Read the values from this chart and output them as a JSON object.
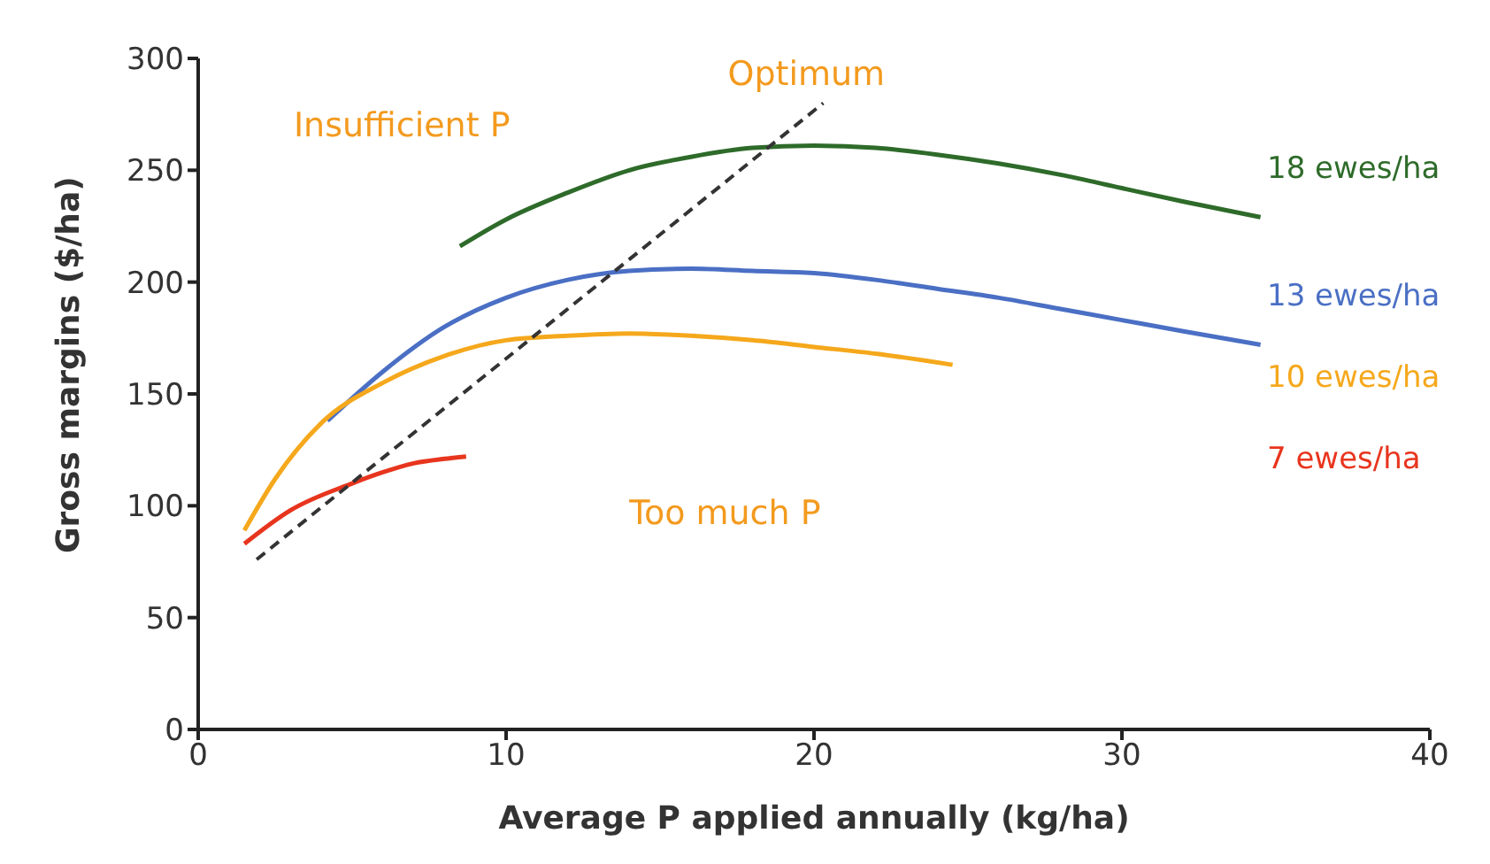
{
  "chart_data": {
    "type": "line",
    "xlabel": "Average P applied annually (kg/ha)",
    "ylabel": "Gross margins ($/ha)",
    "xlim": [
      0,
      40
    ],
    "xticks": [
      0,
      10,
      20,
      30,
      40
    ],
    "ylim": [
      0,
      300
    ],
    "yticks": [
      0,
      50,
      100,
      150,
      200,
      250,
      300
    ],
    "grid": false,
    "legend": false,
    "marker": "none",
    "annotations": [
      "Insufficient P",
      "Optimum",
      "Too much P"
    ],
    "series": [
      {
        "name": "18 ewes/ha",
        "color": "#2e6b2a",
        "x": [
          8.5,
          10,
          12,
          14,
          16,
          18,
          20,
          22,
          24,
          26,
          28,
          30,
          32,
          34.5
        ],
        "values": [
          216,
          228,
          240,
          250,
          256,
          260,
          261,
          260,
          257,
          253,
          248,
          242,
          236,
          229
        ]
      },
      {
        "name": "13 ewes/ha",
        "color": "#4a6fc4",
        "x": [
          4.2,
          6,
          8,
          10,
          12,
          14,
          16,
          18,
          20,
          22,
          24,
          26,
          28,
          30,
          32,
          34.5
        ],
        "values": [
          138,
          160,
          180,
          193,
          201,
          205,
          206,
          205,
          204,
          201,
          197,
          193,
          188,
          183,
          178,
          172
        ]
      },
      {
        "name": "10 ewes/ha",
        "color": "#f5a81c",
        "x": [
          1.5,
          2.5,
          4,
          6,
          8,
          10,
          12,
          14,
          16,
          18,
          20,
          22,
          24.5
        ],
        "values": [
          89,
          112,
          137,
          155,
          167,
          174,
          176,
          177,
          176,
          174,
          171,
          168,
          163
        ]
      },
      {
        "name": "7 ewes/ha",
        "color": "#e8351e",
        "x": [
          1.5,
          3,
          5,
          6,
          7,
          8,
          8.7
        ],
        "values": [
          83,
          98,
          110,
          115,
          119,
          121,
          122
        ]
      },
      {
        "color": "#333333",
        "line_style": "dashed",
        "x": [
          1.9,
          20.3
        ],
        "values": [
          76,
          280
        ]
      }
    ]
  }
}
